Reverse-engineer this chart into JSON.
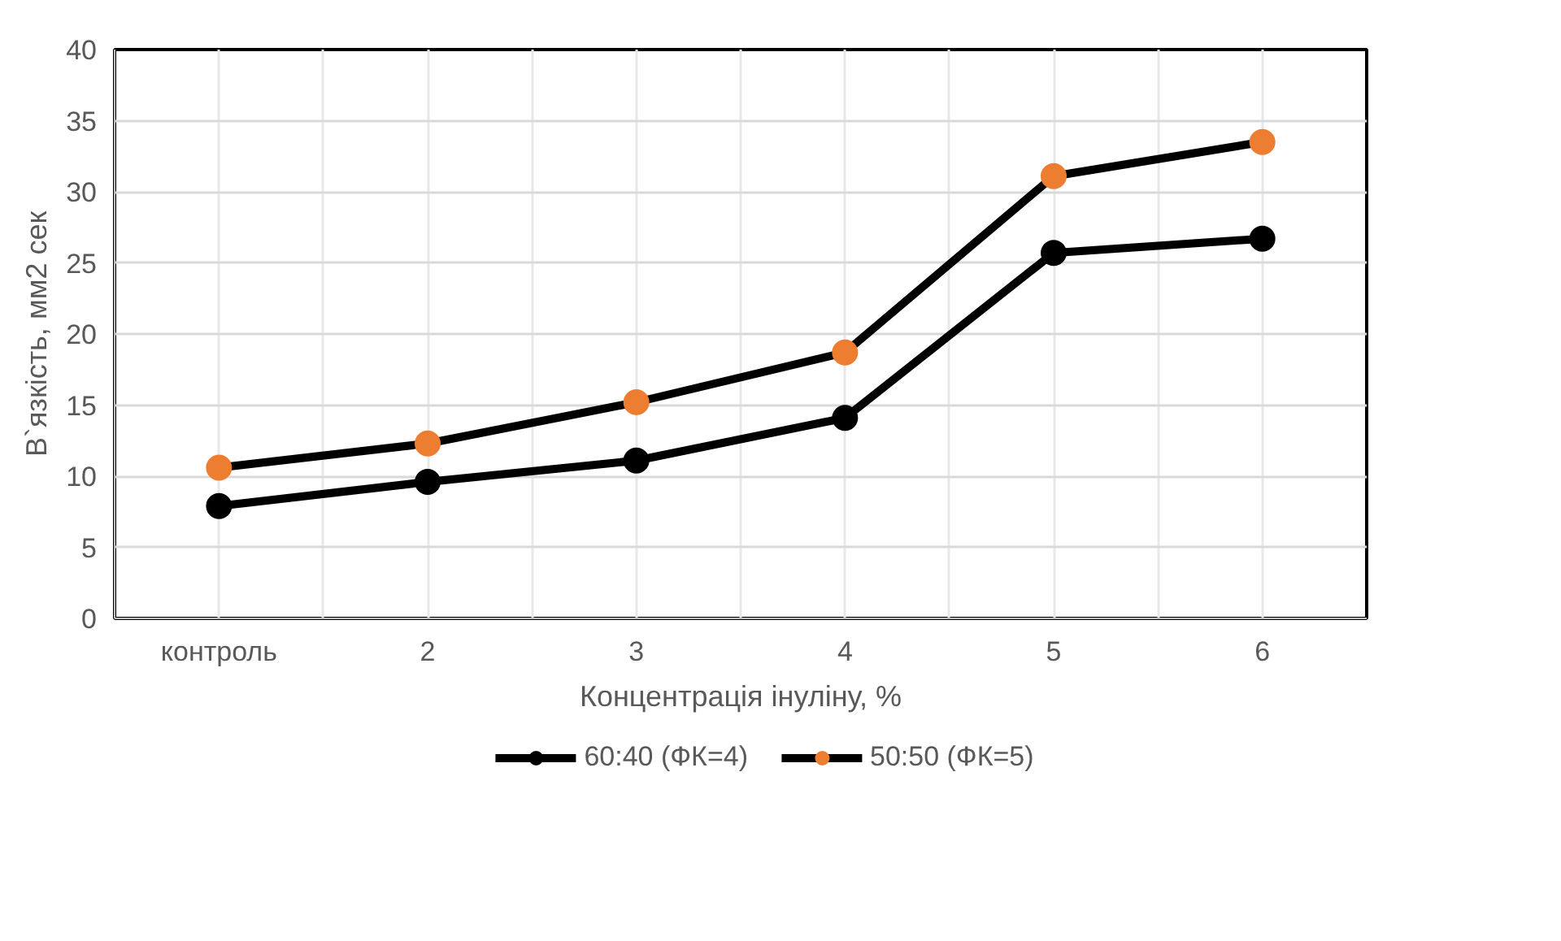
{
  "chart_data": {
    "type": "line",
    "xlabel": "Концентрація інуліну, %",
    "ylabel": "В`язкість, мм2 сек",
    "categories": [
      "контроль",
      "2",
      "3",
      "4",
      "5",
      "6"
    ],
    "series": [
      {
        "name": "60:40 (ФК=4)",
        "color": "#000000",
        "values": [
          7.9,
          9.6,
          11.1,
          14.1,
          25.7,
          26.7
        ]
      },
      {
        "name": "50:50 (ФК=5)",
        "color": "#ed7d31",
        "values": [
          10.6,
          12.3,
          15.2,
          18.7,
          31.1,
          33.5
        ]
      }
    ],
    "ylim": [
      0,
      40
    ],
    "yticks": [
      0,
      5,
      10,
      15,
      20,
      25,
      30,
      35,
      40
    ],
    "grid": true,
    "legend": "bottom",
    "marker": "circle",
    "line_style": "solid"
  }
}
